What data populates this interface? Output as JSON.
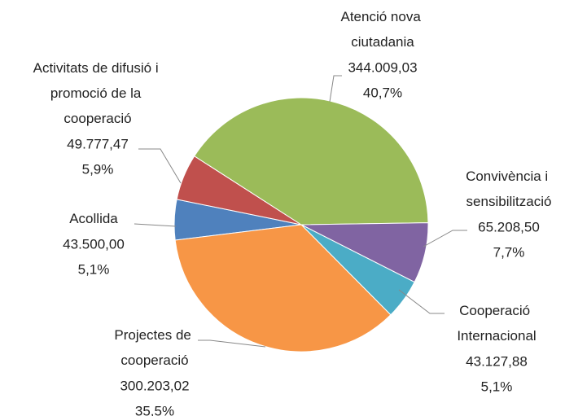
{
  "chart_data": {
    "type": "pie",
    "categories": [
      "Acollida",
      "Activitats de difusió i promoció de la cooperació",
      "Atenció nova ciutadania",
      "Convivència i sensibilització",
      "Cooperació Internacional",
      "Projectes de cooperació"
    ],
    "values": [
      43500.0,
      49777.47,
      344009.03,
      65208.5,
      43127.88,
      300203.02
    ],
    "value_labels": [
      "43.500,00",
      "49.777,47",
      "344.009,03",
      "65.208,50",
      "43.127,88",
      "300.203,02"
    ],
    "percentages": [
      5.1,
      5.9,
      40.7,
      7.7,
      5.1,
      35.5
    ],
    "percentage_labels": [
      "5,1%",
      "5,9%",
      "40,7%",
      "7,7%",
      "5,1%",
      "35,5%"
    ],
    "colors": [
      "#4f81bd",
      "#c0504d",
      "#9bbb59",
      "#8064a2",
      "#4bacc6",
      "#f79646"
    ]
  }
}
